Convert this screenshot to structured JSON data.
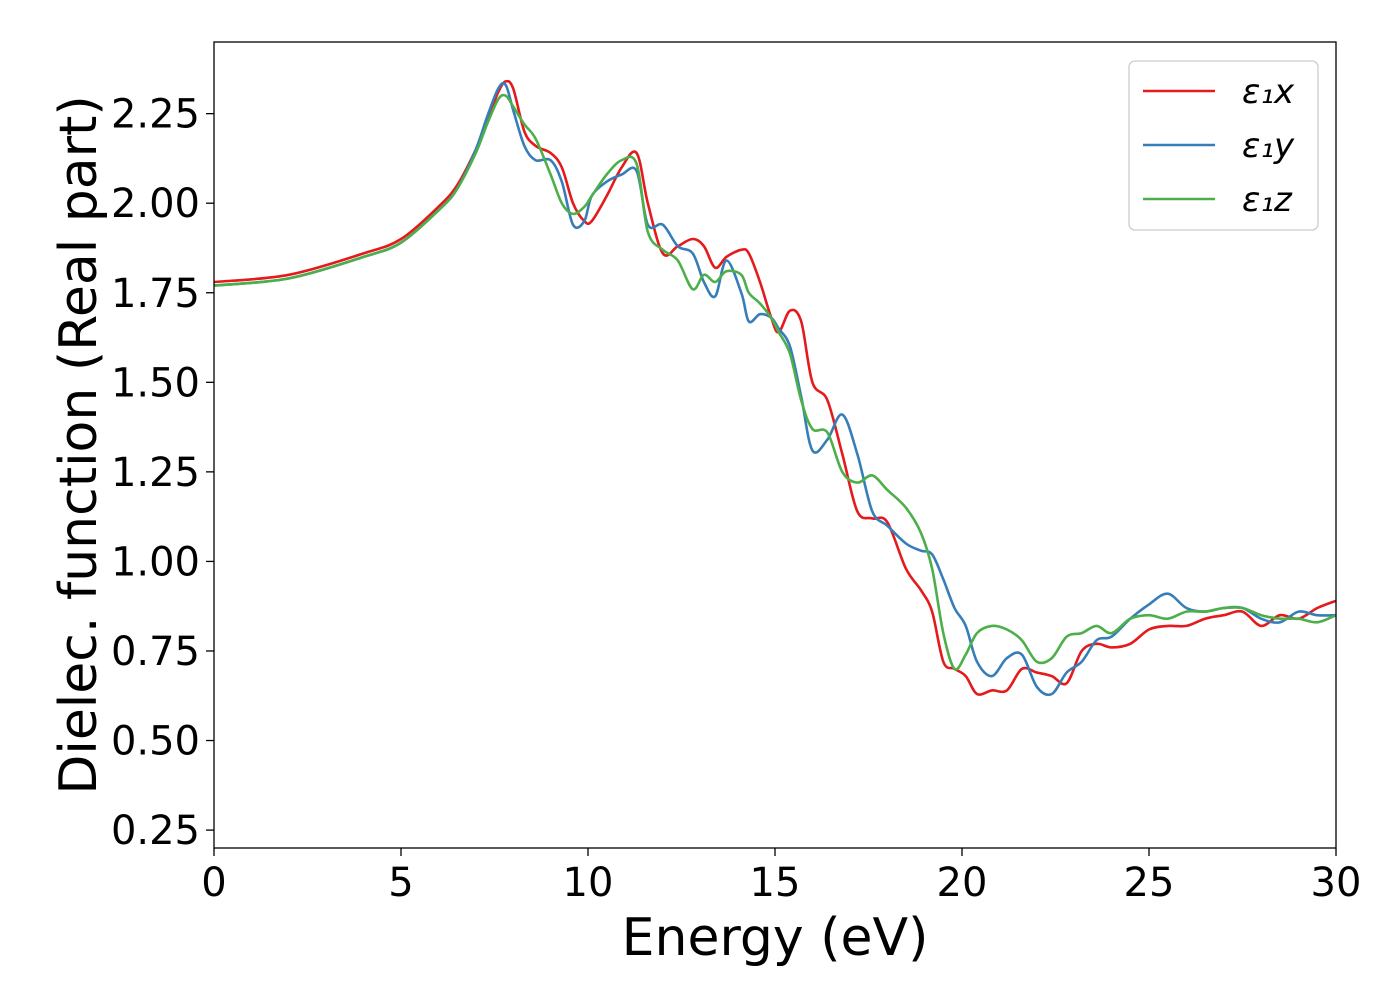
{
  "chart_data": {
    "type": "line",
    "title": "",
    "xlabel": "Energy (eV)",
    "ylabel": "Dielec. function (Real part)",
    "xlim": [
      0,
      30
    ],
    "ylim": [
      0.2,
      2.45
    ],
    "xticks": [
      0,
      5,
      10,
      15,
      20,
      25,
      30
    ],
    "xtick_labels": [
      "0",
      "5",
      "10",
      "15",
      "20",
      "25",
      "30"
    ],
    "yticks": [
      0.25,
      0.5,
      0.75,
      1.0,
      1.25,
      1.5,
      1.75,
      2.0,
      2.25
    ],
    "ytick_labels": [
      "0.25",
      "0.50",
      "0.75",
      "1.00",
      "1.25",
      "1.50",
      "1.75",
      "2.00",
      "2.25"
    ],
    "grid": false,
    "legend_position": "top-right",
    "series": [
      {
        "name": "ε₁x",
        "color": "#e41a1c",
        "x": [
          0,
          2,
          4,
          5,
          6,
          6.5,
          7,
          7.3,
          7.6,
          7.8,
          8.0,
          8.3,
          8.6,
          9.0,
          9.3,
          9.6,
          9.9,
          10.1,
          10.5,
          10.9,
          11.3,
          11.6,
          12.0,
          12.4,
          12.8,
          13.1,
          13.4,
          13.7,
          14.1,
          14.3,
          14.6,
          14.9,
          15.1,
          15.4,
          15.7,
          16.0,
          16.4,
          16.8,
          17.2,
          17.6,
          18.0,
          18.5,
          18.9,
          19.2,
          19.5,
          19.8,
          20.1,
          20.4,
          20.8,
          21.2,
          21.6,
          22.0,
          22.4,
          22.8,
          23.2,
          23.6,
          24.0,
          24.5,
          25.0,
          25.5,
          26.0,
          26.5,
          27.0,
          27.5,
          28.0,
          28.5,
          29.0,
          29.5,
          30.0
        ],
        "values": [
          1.78,
          1.8,
          1.86,
          1.9,
          1.99,
          2.05,
          2.15,
          2.23,
          2.31,
          2.34,
          2.32,
          2.2,
          2.16,
          2.14,
          2.1,
          2.0,
          1.95,
          1.95,
          2.02,
          2.1,
          2.14,
          2.0,
          1.86,
          1.88,
          1.9,
          1.88,
          1.82,
          1.85,
          1.87,
          1.86,
          1.78,
          1.68,
          1.64,
          1.7,
          1.67,
          1.5,
          1.45,
          1.3,
          1.14,
          1.12,
          1.11,
          0.98,
          0.92,
          0.86,
          0.72,
          0.7,
          0.68,
          0.63,
          0.64,
          0.64,
          0.7,
          0.69,
          0.68,
          0.66,
          0.75,
          0.77,
          0.76,
          0.77,
          0.81,
          0.82,
          0.82,
          0.84,
          0.85,
          0.86,
          0.82,
          0.85,
          0.84,
          0.87,
          0.89
        ]
      },
      {
        "name": "ε₁y",
        "color": "#377eb8",
        "x": [
          0,
          2,
          4,
          5,
          6,
          6.5,
          7,
          7.3,
          7.6,
          7.8,
          8.0,
          8.3,
          8.6,
          9.0,
          9.3,
          9.6,
          9.9,
          10.1,
          10.5,
          10.9,
          11.3,
          11.6,
          12.0,
          12.4,
          12.8,
          13.1,
          13.4,
          13.7,
          14.1,
          14.3,
          14.6,
          14.9,
          15.1,
          15.4,
          15.7,
          16.0,
          16.4,
          16.8,
          17.2,
          17.6,
          18.0,
          18.5,
          18.9,
          19.2,
          19.5,
          19.8,
          20.1,
          20.4,
          20.8,
          21.2,
          21.6,
          22.0,
          22.4,
          22.8,
          23.2,
          23.6,
          24.0,
          24.5,
          25.0,
          25.5,
          26.0,
          26.5,
          27.0,
          27.5,
          28.0,
          28.5,
          29.0,
          29.5,
          30.0
        ],
        "values": [
          1.77,
          1.79,
          1.85,
          1.89,
          1.98,
          2.04,
          2.15,
          2.24,
          2.32,
          2.33,
          2.26,
          2.16,
          2.12,
          2.12,
          2.06,
          1.94,
          1.95,
          2.02,
          2.06,
          2.08,
          2.09,
          1.94,
          1.94,
          1.88,
          1.86,
          1.78,
          1.74,
          1.84,
          1.75,
          1.67,
          1.69,
          1.68,
          1.65,
          1.6,
          1.46,
          1.31,
          1.34,
          1.41,
          1.3,
          1.14,
          1.1,
          1.05,
          1.03,
          1.02,
          0.95,
          0.87,
          0.82,
          0.72,
          0.68,
          0.73,
          0.74,
          0.65,
          0.63,
          0.69,
          0.72,
          0.78,
          0.79,
          0.84,
          0.88,
          0.91,
          0.87,
          0.86,
          0.87,
          0.87,
          0.84,
          0.83,
          0.86,
          0.85,
          0.85
        ]
      },
      {
        "name": "ε₁z",
        "color": "#4daf4a",
        "x": [
          0,
          2,
          4,
          5,
          6,
          6.5,
          7,
          7.3,
          7.6,
          7.8,
          8.0,
          8.3,
          8.6,
          9.0,
          9.3,
          9.6,
          9.9,
          10.1,
          10.5,
          10.9,
          11.3,
          11.6,
          12.0,
          12.4,
          12.8,
          13.1,
          13.4,
          13.7,
          14.1,
          14.3,
          14.6,
          14.9,
          15.1,
          15.4,
          15.7,
          16.0,
          16.4,
          16.8,
          17.2,
          17.6,
          18.0,
          18.5,
          18.9,
          19.2,
          19.5,
          19.8,
          20.1,
          20.4,
          20.8,
          21.2,
          21.6,
          22.0,
          22.4,
          22.8,
          23.2,
          23.6,
          24.0,
          24.5,
          25.0,
          25.5,
          26.0,
          26.5,
          27.0,
          27.5,
          28.0,
          28.5,
          29.0,
          29.5,
          30.0
        ],
        "values": [
          1.77,
          1.79,
          1.85,
          1.89,
          1.98,
          2.04,
          2.14,
          2.22,
          2.29,
          2.3,
          2.27,
          2.22,
          2.18,
          2.08,
          2.0,
          1.97,
          1.99,
          2.02,
          2.08,
          2.12,
          2.11,
          1.92,
          1.87,
          1.84,
          1.76,
          1.8,
          1.78,
          1.81,
          1.8,
          1.75,
          1.72,
          1.68,
          1.64,
          1.58,
          1.45,
          1.37,
          1.36,
          1.25,
          1.22,
          1.24,
          1.2,
          1.15,
          1.08,
          0.98,
          0.8,
          0.7,
          0.74,
          0.8,
          0.82,
          0.81,
          0.78,
          0.72,
          0.73,
          0.79,
          0.8,
          0.82,
          0.8,
          0.84,
          0.85,
          0.84,
          0.86,
          0.86,
          0.87,
          0.87,
          0.85,
          0.84,
          0.84,
          0.83,
          0.85
        ]
      }
    ]
  }
}
